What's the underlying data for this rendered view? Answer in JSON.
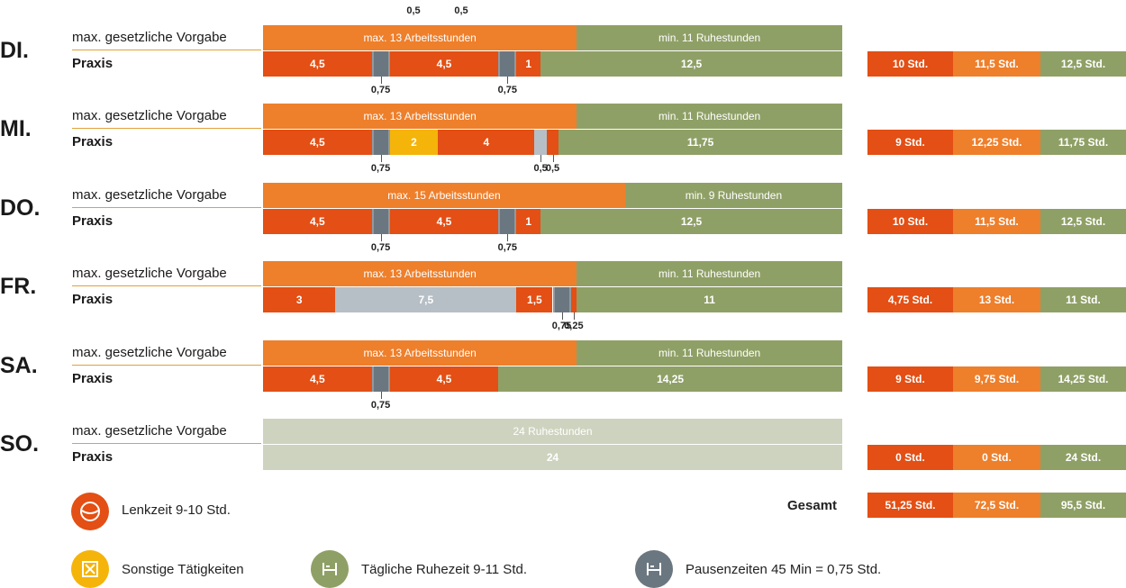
{
  "colors": {
    "drive": "#e34f14",
    "legal_work": "#ee7f2b",
    "rest": "#8fa066",
    "break": "#6b7780",
    "other": "#f5b40a",
    "pause_light": "#b6bfc6",
    "sunday": "#ced3bf"
  },
  "legend": {
    "drive": "Lenkzeit 9-10 Std.",
    "other": "Sonstige Tätigkeiten",
    "rest": "Tägliche Ruhezeit 9-11 Std.",
    "break": "Pausenzeiten 45 Min = 0,75 Std.",
    "drive_icon": "steering-wheel-icon",
    "other_icon": "tools-icon",
    "rest_icon": "bed-icon",
    "break_icon": "bed-icon"
  },
  "gesamt": {
    "label": "Gesamt",
    "values": [
      "51,25 Std.",
      "72,5 Std.",
      "95,5 Std."
    ]
  },
  "chart_data": {
    "type": "bar",
    "orientation": "horizontal-stacked",
    "x_unit": "Stunden",
    "xlim": [
      0,
      24
    ],
    "top_labels": [
      "0,5",
      "0,5"
    ],
    "days": [
      {
        "day": "DI.",
        "legal_label": "max. gesetzliche Vorgabe",
        "legal": [
          {
            "kind": "legal_work",
            "value": 13,
            "text": "max. 13 Arbeitsstunden"
          },
          {
            "kind": "rest",
            "value": 11,
            "text": "min. 11 Ruhestunden"
          }
        ],
        "practice_label": "Praxis",
        "practice": [
          {
            "kind": "drive",
            "value": 4.5,
            "text": "4,5"
          },
          {
            "kind": "break",
            "value": 0.75,
            "text": "",
            "below": "0,75"
          },
          {
            "kind": "drive",
            "value": 4.5,
            "text": "4,5"
          },
          {
            "kind": "break",
            "value": 0.75,
            "text": "",
            "below": "0,75"
          },
          {
            "kind": "drive",
            "value": 1,
            "text": "1"
          },
          {
            "kind": "rest",
            "value": 12.5,
            "text": "12,5"
          }
        ],
        "summary": [
          "10 Std.",
          "11,5 Std.",
          "12,5 Std."
        ]
      },
      {
        "day": "MI.",
        "legal_label": "max. gesetzliche Vorgabe",
        "legal": [
          {
            "kind": "legal_work",
            "value": 13,
            "text": "max. 13 Arbeitsstunden"
          },
          {
            "kind": "rest",
            "value": 11,
            "text": "min. 11 Ruhestunden"
          }
        ],
        "practice_label": "Praxis",
        "practice": [
          {
            "kind": "drive",
            "value": 4.5,
            "text": "4,5"
          },
          {
            "kind": "break",
            "value": 0.75,
            "text": "",
            "below": "0,75"
          },
          {
            "kind": "other",
            "value": 2,
            "text": "2"
          },
          {
            "kind": "drive",
            "value": 4,
            "text": "4"
          },
          {
            "kind": "pause_light",
            "value": 0.5,
            "text": "",
            "below": "0,5"
          },
          {
            "kind": "drive",
            "value": 0.5,
            "text": "",
            "below": "0,5"
          },
          {
            "kind": "rest",
            "value": 11.75,
            "text": "11,75"
          }
        ],
        "summary": [
          "9 Std.",
          "12,25 Std.",
          "11,75 Std."
        ]
      },
      {
        "day": "DO.",
        "legal_label": "max. gesetzliche Vorgabe",
        "legal": [
          {
            "kind": "legal_work",
            "value": 15,
            "text": "max. 15 Arbeitsstunden"
          },
          {
            "kind": "rest",
            "value": 9,
            "text": "min. 9 Ruhestunden"
          }
        ],
        "practice_label": "Praxis",
        "practice": [
          {
            "kind": "drive",
            "value": 4.5,
            "text": "4,5"
          },
          {
            "kind": "break",
            "value": 0.75,
            "text": "",
            "below": "0,75"
          },
          {
            "kind": "drive",
            "value": 4.5,
            "text": "4,5"
          },
          {
            "kind": "break",
            "value": 0.75,
            "text": "",
            "below": "0,75"
          },
          {
            "kind": "drive",
            "value": 1,
            "text": "1"
          },
          {
            "kind": "rest",
            "value": 12.5,
            "text": "12,5"
          }
        ],
        "summary": [
          "10 Std.",
          "11,5 Std.",
          "12,5 Std."
        ]
      },
      {
        "day": "FR.",
        "legal_label": "max. gesetzliche Vorgabe",
        "legal": [
          {
            "kind": "legal_work",
            "value": 13,
            "text": "max. 13 Arbeitsstunden"
          },
          {
            "kind": "rest",
            "value": 11,
            "text": "min. 11 Ruhestunden"
          }
        ],
        "practice_label": "Praxis",
        "practice": [
          {
            "kind": "drive",
            "value": 3,
            "text": "3"
          },
          {
            "kind": "pause_light",
            "value": 7.5,
            "text": "7,5"
          },
          {
            "kind": "drive",
            "value": 1.5,
            "text": "1,5"
          },
          {
            "kind": "break",
            "value": 0.75,
            "text": "",
            "below": "0,75"
          },
          {
            "kind": "drive",
            "value": 0.25,
            "text": "",
            "below": "0,25"
          },
          {
            "kind": "rest",
            "value": 11,
            "text": "11"
          }
        ],
        "summary": [
          "4,75 Std.",
          "13 Std.",
          "11 Std."
        ]
      },
      {
        "day": "SA.",
        "legal_label": "max. gesetzliche Vorgabe",
        "legal": [
          {
            "kind": "legal_work",
            "value": 13,
            "text": "max. 13 Arbeitsstunden"
          },
          {
            "kind": "rest",
            "value": 11,
            "text": "min. 11 Ruhestunden"
          }
        ],
        "practice_label": "Praxis",
        "practice": [
          {
            "kind": "drive",
            "value": 4.5,
            "text": "4,5"
          },
          {
            "kind": "break",
            "value": 0.75,
            "text": "",
            "below": "0,75"
          },
          {
            "kind": "drive",
            "value": 4.5,
            "text": "4,5"
          },
          {
            "kind": "rest",
            "value": 14.25,
            "text": "14,25"
          }
        ],
        "summary": [
          "9 Std.",
          "9,75 Std.",
          "14,25 Std."
        ]
      },
      {
        "day": "SO.",
        "legal_label": "max. gesetzliche Vorgabe",
        "legal": [
          {
            "kind": "sunday",
            "value": 24,
            "text": "24 Ruhestunden"
          }
        ],
        "practice_label": "Praxis",
        "practice": [
          {
            "kind": "sunday",
            "value": 24,
            "text": "24"
          }
        ],
        "summary": [
          "0 Std.",
          "0 Std.",
          "24 Std."
        ]
      }
    ]
  }
}
